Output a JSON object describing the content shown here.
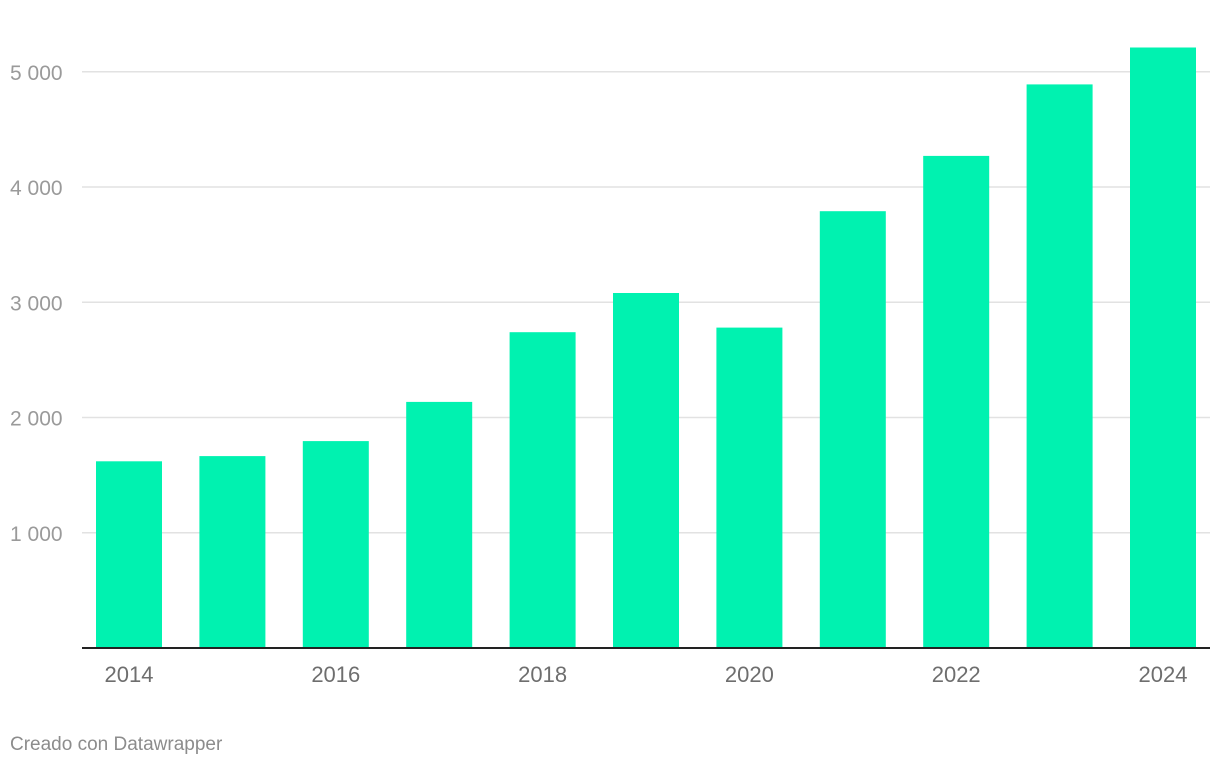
{
  "chart_data": {
    "type": "bar",
    "title": "",
    "xlabel": "",
    "ylabel": "",
    "categories": [
      "2014",
      "2015",
      "2016",
      "2017",
      "2018",
      "2019",
      "2020",
      "2021",
      "2022",
      "2023",
      "2024"
    ],
    "values": [
      1620,
      1665,
      1795,
      2135,
      2740,
      3080,
      2780,
      3790,
      4270,
      4890,
      5210
    ],
    "ylim": [
      0,
      5300
    ],
    "yticks": [
      1000,
      2000,
      3000,
      4000,
      5000
    ],
    "ytick_labels": [
      "1 000",
      "2 000",
      "3 000",
      "4 000",
      "5 000"
    ],
    "xtick_labels": [
      "2014",
      "2016",
      "2018",
      "2020",
      "2022",
      "2024"
    ],
    "grid": true,
    "bar_color": "#00f2b0"
  },
  "footer": {
    "credit": "Creado con Datawrapper"
  }
}
